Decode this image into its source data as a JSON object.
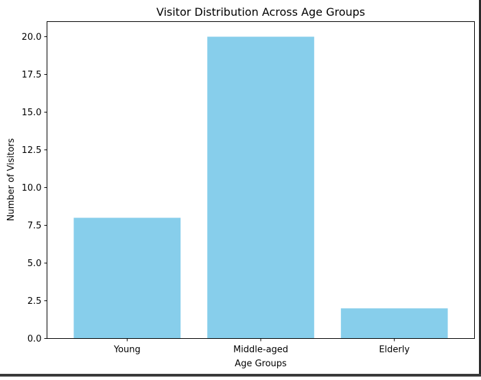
{
  "chart_data": {
    "type": "bar",
    "title": "Visitor Distribution Across Age Groups",
    "xlabel": "Age Groups",
    "ylabel": "Number of Visitors",
    "categories": [
      "Young",
      "Middle-aged",
      "Elderly"
    ],
    "values": [
      8,
      20,
      2
    ],
    "ylim": [
      0,
      21
    ],
    "yticks": [
      0.0,
      2.5,
      5.0,
      7.5,
      10.0,
      12.5,
      15.0,
      17.5,
      20.0
    ],
    "ytick_labels": [
      "0.0",
      "2.5",
      "5.0",
      "7.5",
      "10.0",
      "12.5",
      "15.0",
      "17.5",
      "20.0"
    ],
    "bar_color": "#87ceeb",
    "grid": false,
    "legend": false
  }
}
